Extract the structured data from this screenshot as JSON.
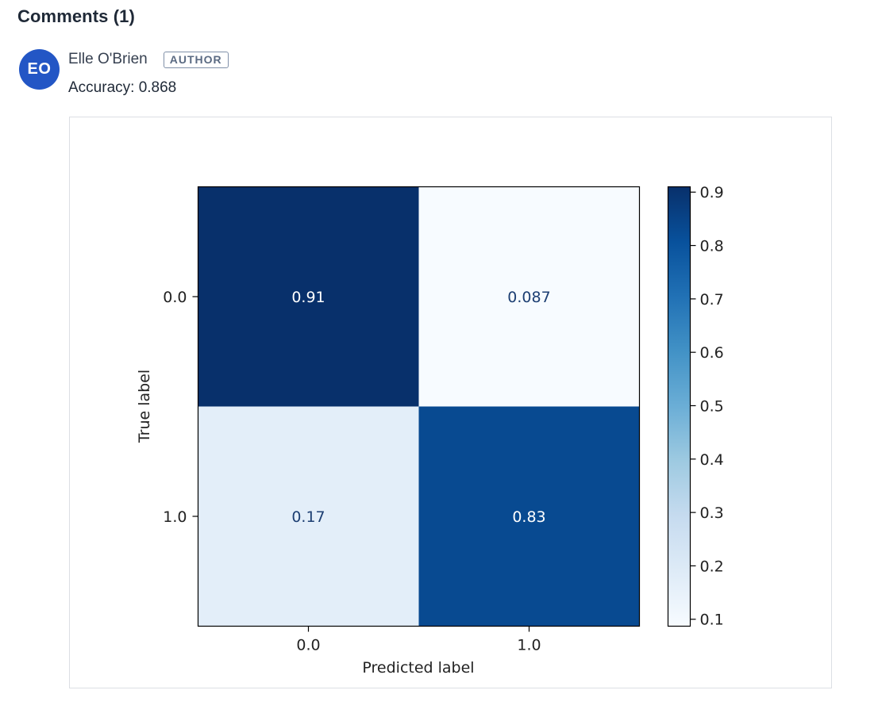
{
  "comments_section": {
    "title": "Comments (1)"
  },
  "comment": {
    "avatar_initials": "EO",
    "author": "Elle O'Brien",
    "badge": "AUTHOR",
    "body": "Accuracy: 0.868"
  },
  "colors": {
    "avatar": "#2356c5",
    "badge_border": "#8090a8",
    "cmap_low": "#f7fbff",
    "cmap_high": "#08306b"
  },
  "chart_data": {
    "type": "heatmap",
    "colormap": "Blues",
    "x_categories": [
      "0.0",
      "1.0"
    ],
    "y_categories": [
      "0.0",
      "1.0"
    ],
    "values": [
      [
        0.91,
        0.087
      ],
      [
        0.17,
        0.83
      ]
    ],
    "cell_labels": [
      [
        "0.91",
        "0.087"
      ],
      [
        "0.17",
        "0.83"
      ]
    ],
    "xlabel": "Predicted label",
    "ylabel": "True label",
    "colorbar": {
      "range": [
        0.087,
        0.91
      ],
      "ticks": [
        0.9,
        0.8,
        0.7,
        0.6,
        0.5,
        0.4,
        0.3,
        0.2,
        0.1
      ],
      "tick_labels": [
        "0.9",
        "0.8",
        "0.7",
        "0.6",
        "0.5",
        "0.4",
        "0.3",
        "0.2",
        "0.1"
      ]
    }
  }
}
